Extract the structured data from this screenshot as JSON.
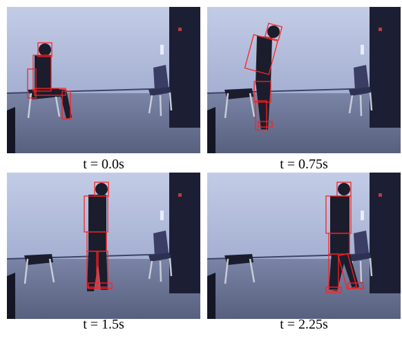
{
  "panels": [
    {
      "caption": "t = 0.0s"
    },
    {
      "caption": "t = 0.75s"
    },
    {
      "caption": "t = 1.5s"
    },
    {
      "caption": "t = 2.25s"
    }
  ]
}
